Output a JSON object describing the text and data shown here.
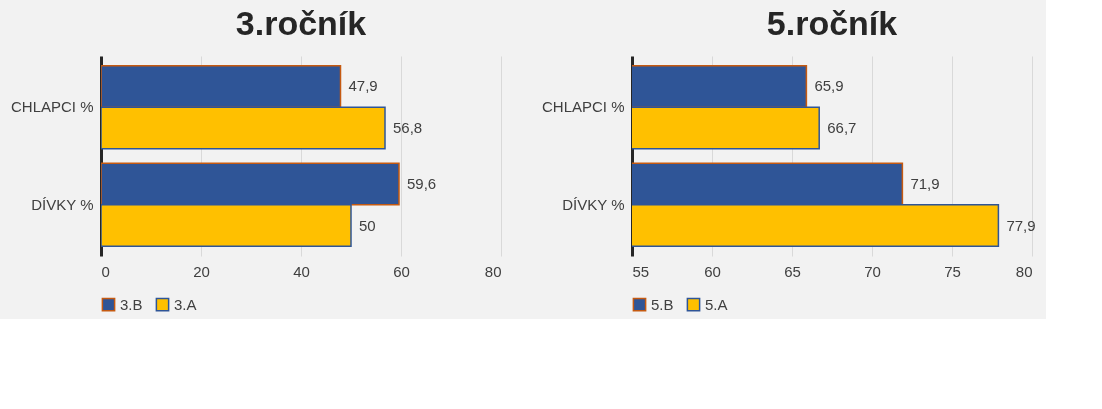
{
  "chart_data": [
    {
      "type": "bar",
      "orientation": "horizontal",
      "title": "3.ročník",
      "categories": [
        "CHLAPCI %",
        "DÍVKY %"
      ],
      "series": [
        {
          "name": "3.B",
          "color": "#2f5597",
          "values": [
            47.9,
            59.6
          ],
          "value_labels": [
            "47,9",
            "59,6"
          ]
        },
        {
          "name": "3.A",
          "color": "#ffc000",
          "values": [
            56.8,
            50
          ],
          "value_labels": [
            "56,8",
            "50"
          ]
        }
      ],
      "xlim": [
        0,
        80
      ],
      "xticks": [
        0,
        20,
        40,
        60,
        80
      ],
      "grid": "x",
      "legend": "bottom"
    },
    {
      "type": "bar",
      "orientation": "horizontal",
      "title": "5.ročník",
      "categories": [
        "CHLAPCI %",
        "DÍVKY %"
      ],
      "series": [
        {
          "name": "5.B",
          "color": "#2f5597",
          "values": [
            65.9,
            71.9
          ],
          "value_labels": [
            "65,9",
            "71,9"
          ]
        },
        {
          "name": "5.A",
          "color": "#ffc000",
          "values": [
            66.7,
            77.9
          ],
          "value_labels": [
            "66,7",
            "77,9"
          ]
        }
      ],
      "xlim": [
        55,
        80
      ],
      "xticks": [
        55,
        60,
        65,
        70,
        75,
        80
      ],
      "grid": "x",
      "legend": "bottom"
    }
  ]
}
